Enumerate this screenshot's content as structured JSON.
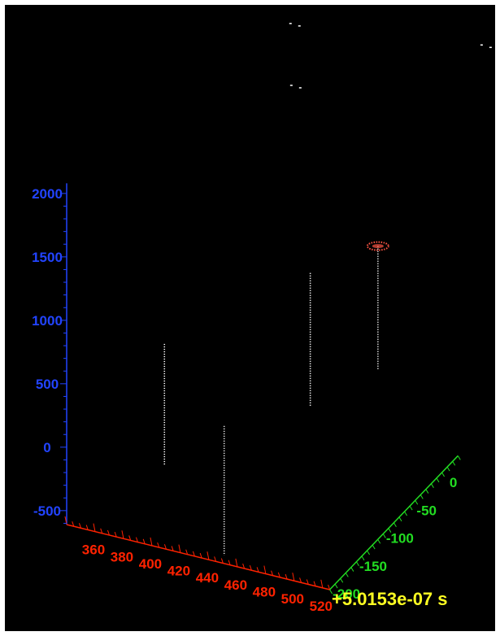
{
  "chart_data": {
    "type": "scatter",
    "projection": "3d",
    "colors": {
      "background": "#000000",
      "frame": "#ffffff",
      "x_axis": "#ff2200",
      "y_axis": "#22dd22",
      "z_axis": "#2244ff",
      "time_label": "#ffff22",
      "markers": "#ffffff",
      "highlight": "#ff5544"
    },
    "z_axis": {
      "ticks": [
        2000,
        1500,
        1000,
        500,
        0,
        -500
      ],
      "range": [
        -650,
        2080
      ]
    },
    "x_axis": {
      "ticks": [
        360,
        380,
        400,
        420,
        440,
        460,
        480,
        500,
        520
      ],
      "range": [
        340,
        525
      ]
    },
    "y_axis": {
      "ticks": [
        0,
        -50,
        -100,
        -150,
        -200
      ],
      "range": [
        -210,
        30
      ]
    },
    "time_label": "+5.0153e-07 s",
    "tracks": [
      {
        "x": 405,
        "y": -200,
        "z_min": 0,
        "z_max": 950
      },
      {
        "x": 447,
        "y": -200,
        "z_min": -600,
        "z_max": 420
      },
      {
        "x": 470,
        "y": -100,
        "z_min": 200,
        "z_max": 1250
      },
      {
        "x": 480,
        "y": 0,
        "z_min": 80,
        "z_max": 1050
      }
    ],
    "highlight_points": [
      {
        "x": 480,
        "y": 0,
        "z": 1050
      }
    ],
    "scattered_points": [
      {
        "x": 400,
        "y": 50,
        "z": 2350
      },
      {
        "x": 410,
        "y": 25,
        "z": 2000
      },
      {
        "x": 470,
        "y": 110,
        "z": 2500
      },
      {
        "x": 510,
        "y": 115,
        "z": 2200
      }
    ]
  }
}
